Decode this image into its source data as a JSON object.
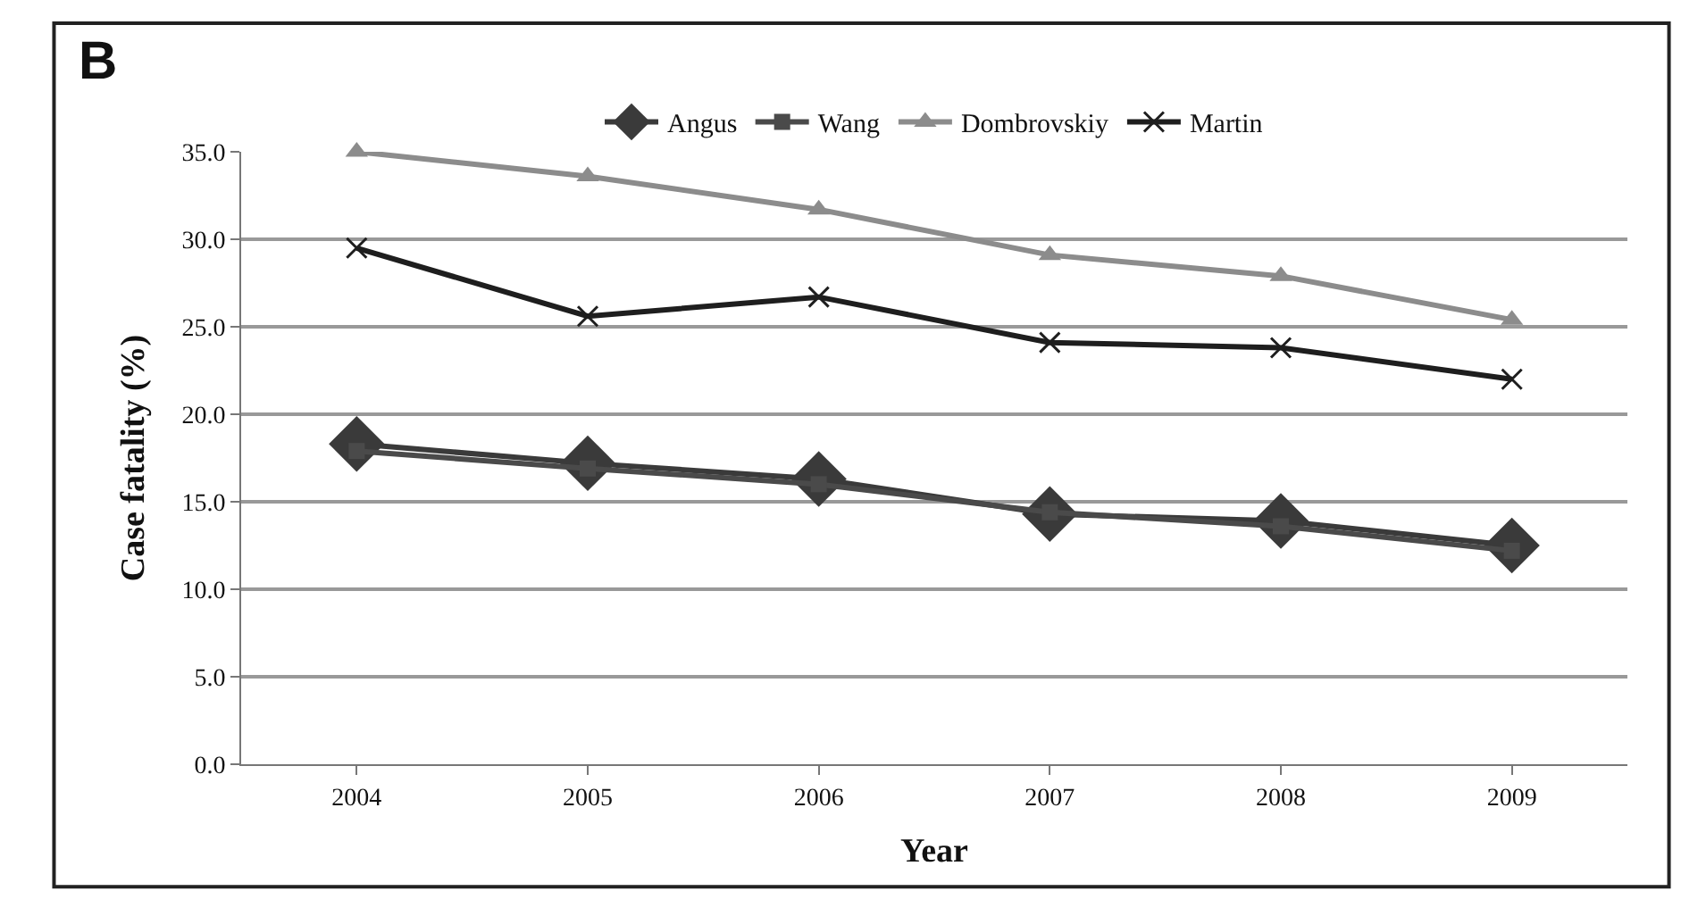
{
  "chart_data": {
    "type": "line",
    "xlabel": "Year",
    "ylabel": "Case fatality (%)",
    "annotations": [
      "B"
    ],
    "categories": [
      "2004",
      "2005",
      "2006",
      "2007",
      "2008",
      "2009"
    ],
    "series": [
      {
        "name": "Angus",
        "color": "#3a3a3a",
        "marker": "diamond",
        "values": [
          18.3,
          17.2,
          16.3,
          14.3,
          13.9,
          12.5
        ]
      },
      {
        "name": "Wang",
        "color": "#4a4a4a",
        "marker": "square",
        "values": [
          17.9,
          16.9,
          16.0,
          14.4,
          13.6,
          12.2
        ]
      },
      {
        "name": "Dombrovskiy",
        "color": "#8c8c8c",
        "marker": "triangle",
        "values": [
          35.0,
          33.6,
          31.7,
          29.1,
          27.9,
          25.4
        ]
      },
      {
        "name": "Martin",
        "color": "#1e1e1e",
        "marker": "cross",
        "values": [
          29.5,
          25.6,
          26.7,
          24.1,
          23.8,
          22.0
        ]
      }
    ],
    "ylim": [
      0,
      35
    ],
    "yticks": [
      {
        "value": 0,
        "label": "0.0"
      },
      {
        "value": 5,
        "label": "5.0"
      },
      {
        "value": 10,
        "label": "10.0"
      },
      {
        "value": 15,
        "label": "15.0"
      },
      {
        "value": 20,
        "label": "20.0"
      },
      {
        "value": 25,
        "label": "25.0"
      },
      {
        "value": 30,
        "label": "30.0"
      },
      {
        "value": 35,
        "label": "35.0"
      }
    ],
    "grid": "y",
    "legend": "top",
    "line_style": "solid"
  }
}
